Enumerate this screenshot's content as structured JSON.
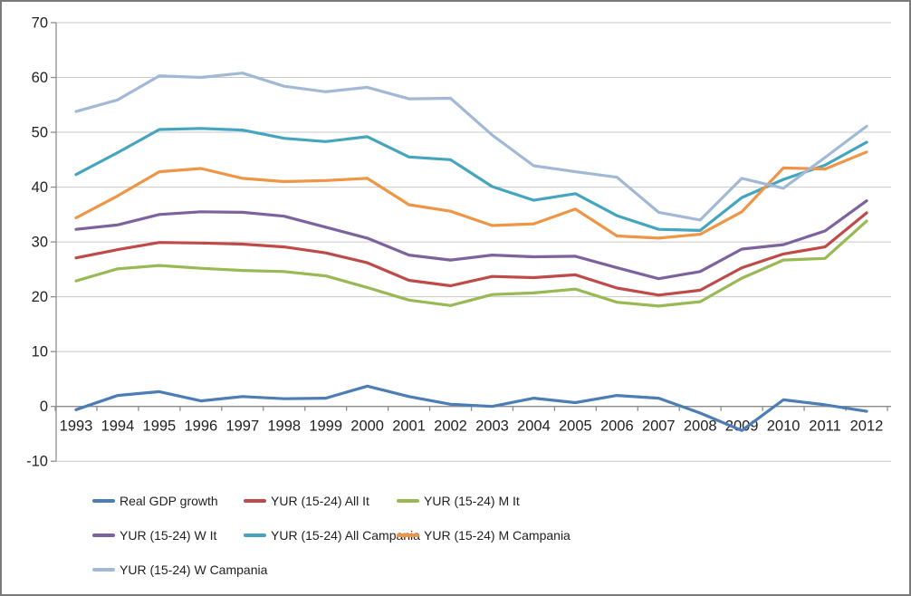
{
  "chart_data": {
    "type": "line",
    "title": "",
    "xlabel": "",
    "ylabel": "",
    "x": [
      "1993",
      "1994",
      "1995",
      "1996",
      "1997",
      "1998",
      "1999",
      "2000",
      "2001",
      "2002",
      "2003",
      "2004",
      "2005",
      "2006",
      "2007",
      "2008",
      "2009",
      "2010",
      "2011",
      "2012"
    ],
    "ylim": [
      -10,
      70
    ],
    "yticks": [
      -10,
      0,
      10,
      20,
      30,
      40,
      50,
      60,
      70
    ],
    "grid": true,
    "legend_position": "bottom",
    "series": [
      {
        "name": "Real GDP growth",
        "color": "#4C7DB4",
        "values": [
          -0.6,
          2.0,
          2.7,
          1.0,
          1.8,
          1.4,
          1.5,
          3.7,
          1.8,
          0.4,
          0.0,
          1.5,
          0.7,
          2.0,
          1.5,
          -1.2,
          -4.4,
          1.2,
          0.3,
          -0.9
        ]
      },
      {
        "name": "YUR (15-24) All It",
        "color": "#BE4B48",
        "values": [
          27.1,
          28.6,
          29.9,
          29.8,
          29.6,
          29.1,
          28.0,
          26.2,
          23.0,
          22.0,
          23.7,
          23.5,
          24.0,
          21.6,
          20.3,
          21.2,
          25.3,
          27.8,
          29.1,
          35.3
        ]
      },
      {
        "name": "YUR (15-24) M It",
        "color": "#98B954",
        "values": [
          22.9,
          25.1,
          25.7,
          25.2,
          24.8,
          24.6,
          23.8,
          21.7,
          19.4,
          18.4,
          20.4,
          20.7,
          21.4,
          19.0,
          18.3,
          19.1,
          23.4,
          26.7,
          27.0,
          33.8
        ]
      },
      {
        "name": "YUR (15-24) W It",
        "color": "#7D639E",
        "values": [
          32.3,
          33.1,
          35.0,
          35.5,
          35.4,
          34.7,
          32.7,
          30.7,
          27.6,
          26.7,
          27.6,
          27.3,
          27.4,
          25.3,
          23.3,
          24.6,
          28.7,
          29.5,
          32.0,
          37.5
        ]
      },
      {
        "name": "YUR (15-24) All Campania",
        "color": "#45A5BF",
        "values": [
          42.3,
          46.3,
          50.5,
          50.7,
          50.4,
          48.9,
          48.3,
          49.2,
          45.5,
          45.0,
          40.1,
          37.6,
          38.8,
          34.8,
          32.3,
          32.1,
          38.1,
          41.4,
          44.0,
          48.2
        ]
      },
      {
        "name": "YUR (15-24) M Campania",
        "color": "#EE9546",
        "values": [
          34.4,
          38.4,
          42.8,
          43.4,
          41.6,
          41.0,
          41.2,
          41.6,
          36.8,
          35.6,
          33.0,
          33.3,
          36.0,
          31.1,
          30.7,
          31.4,
          35.5,
          43.5,
          43.3,
          46.4
        ]
      },
      {
        "name": "YUR (15-24) W Campania",
        "color": "#A2B9D6",
        "values": [
          53.8,
          55.9,
          60.3,
          60.0,
          60.8,
          58.4,
          57.4,
          58.2,
          56.1,
          56.2,
          49.5,
          43.9,
          42.8,
          41.8,
          35.4,
          34.0,
          41.6,
          39.8,
          45.4,
          51.1
        ]
      }
    ],
    "legend_rows": [
      [
        0,
        1,
        2
      ],
      [
        3,
        4,
        5
      ],
      [
        6
      ]
    ]
  }
}
